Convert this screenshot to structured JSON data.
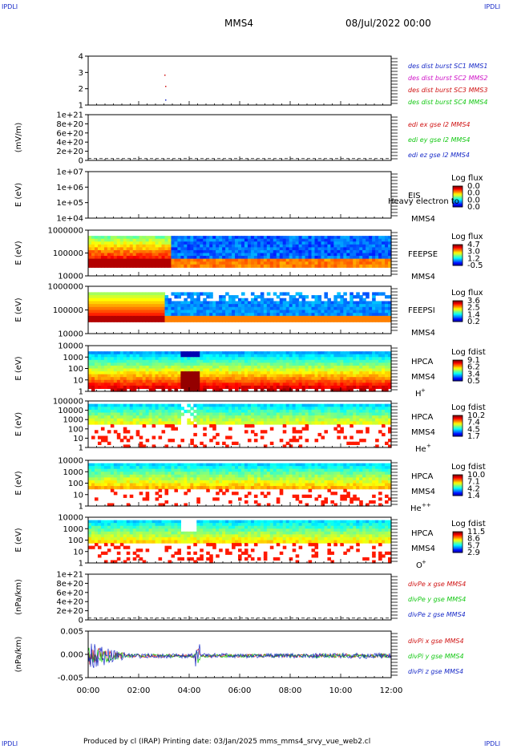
{
  "header": {
    "corner_left_top": "IPDLI",
    "corner_right_top": "IPDLI",
    "corner_left_bottom": "IPDLI",
    "corner_right_bottom": "IPDLI",
    "title": "MMS4",
    "date": "08/Jul/2022 00:00"
  },
  "footer": {
    "text": "Produced by cl (IRAP)   Printing date: 03/Jan/2025   mms_mms4_srvy_vue_web2.cl"
  },
  "colors": {
    "blue": "#1a2cc8",
    "magenta": "#d014c8",
    "red": "#d01414",
    "green": "#14c814"
  },
  "chart_data": [
    {
      "type": "line",
      "panel": "burst",
      "yticks": [
        "1",
        "2",
        "3",
        "4"
      ],
      "legend": [
        {
          "label": "des dist burst SC1 MMS1",
          "color": "#1a2cc8"
        },
        {
          "label": "des dist burst SC2 MMS2",
          "color": "#d014c8"
        },
        {
          "label": "des dist burst SC3 MMS3",
          "color": "#d01414"
        },
        {
          "label": "des dist burst SC4 MMS4",
          "color": "#14c814"
        }
      ]
    },
    {
      "type": "line",
      "panel": "edi",
      "ylabel": "(mV/m)",
      "yticks": [
        "0",
        "2e+20",
        "4e+20",
        "6e+20",
        "8e+20",
        "1e+21"
      ],
      "legend": [
        {
          "label": "edi ex gse l2 MMS4",
          "color": "#d01414"
        },
        {
          "label": "edi ey gse l2 MMS4",
          "color": "#14c814"
        },
        {
          "label": "edi ez gse l2 MMS4",
          "color": "#1a2cc8"
        }
      ]
    },
    {
      "type": "heatmap",
      "panel": "eis",
      "ylabel": "E (eV)",
      "yticks": [
        "1e+04",
        "1e+05",
        "1e+06",
        "1e+07"
      ],
      "inst": [
        "EIS",
        "MMS4"
      ],
      "overlap": "Heavy electron to",
      "cbar_title": "Log flux",
      "cbar_values": [
        "0.0",
        "0.0",
        "0.0",
        "0.0"
      ]
    },
    {
      "type": "heatmap",
      "panel": "feepse",
      "ylabel": "E (eV)",
      "yticks": [
        "10000",
        "100000",
        "1000000"
      ],
      "inst": [
        "FEEPSE",
        "MMS4"
      ],
      "cbar_title": "Log flux",
      "cbar_values": [
        "4.7",
        "3.0",
        "1.2",
        "-0.5"
      ]
    },
    {
      "type": "heatmap",
      "panel": "feepsi",
      "ylabel": "E (eV)",
      "yticks": [
        "10000",
        "100000",
        "1000000"
      ],
      "inst": [
        "FEEPSI",
        "MMS4"
      ],
      "cbar_title": "Log flux",
      "cbar_values": [
        "3.6",
        "2.5",
        "1.4",
        "0.2"
      ]
    },
    {
      "type": "heatmap",
      "panel": "hpca_h",
      "ylabel": "E (eV)",
      "yticks": [
        "1",
        "10",
        "100",
        "1000",
        "10000"
      ],
      "inst": [
        "HPCA",
        "MMS4"
      ],
      "species": "H",
      "sup": "+",
      "cbar_title": "Log fdist",
      "cbar_values": [
        "9.1",
        "6.2",
        "3.4",
        "0.5"
      ]
    },
    {
      "type": "heatmap",
      "panel": "hpca_he",
      "ylabel": "E (eV)",
      "yticks": [
        "1",
        "10",
        "100",
        "1000",
        "10000",
        "100000"
      ],
      "inst": [
        "HPCA",
        "MMS4"
      ],
      "species": "He",
      "sup": "+",
      "cbar_title": "Log fdist",
      "cbar_values": [
        "10.2",
        "7.4",
        "4.5",
        "1.7"
      ]
    },
    {
      "type": "heatmap",
      "panel": "hpca_hepp",
      "ylabel": "E (eV)",
      "yticks": [
        "1",
        "10",
        "100",
        "1000",
        "10000"
      ],
      "inst": [
        "HPCA",
        "MMS4"
      ],
      "species": "He",
      "sup": "++",
      "cbar_title": "Log fdist",
      "cbar_values": [
        "10.0",
        "7.1",
        "4.2",
        "1.4"
      ]
    },
    {
      "type": "heatmap",
      "panel": "hpca_o",
      "ylabel": "E (eV)",
      "yticks": [
        "1",
        "10",
        "100",
        "1000",
        "10000"
      ],
      "inst": [
        "HPCA",
        "MMS4"
      ],
      "species": "O",
      "sup": "+",
      "cbar_title": "Log fdist",
      "cbar_values": [
        "11.5",
        "8.6",
        "5.7",
        "2.9"
      ]
    },
    {
      "type": "line",
      "panel": "divpe",
      "ylabel": "(nPa/km)",
      "yticks": [
        "0",
        "2e+20",
        "4e+20",
        "6e+20",
        "8e+20",
        "1e+21"
      ],
      "legend": [
        {
          "label": "divPe x gse MMS4",
          "color": "#d01414"
        },
        {
          "label": "divPe y gse MMS4",
          "color": "#14c814"
        },
        {
          "label": "divPe z gse MMS4",
          "color": "#1a2cc8"
        }
      ]
    },
    {
      "type": "line",
      "panel": "divpi",
      "ylabel": "(nPa/km)",
      "yticks": [
        "-0.005",
        "0.000",
        "0.005"
      ],
      "legend": [
        {
          "label": "divPi x gse MMS4",
          "color": "#d01414"
        },
        {
          "label": "divPi y gse MMS4",
          "color": "#14c814"
        },
        {
          "label": "divPi z gse MMS4",
          "color": "#1a2cc8"
        }
      ]
    },
    {
      "type": "axis",
      "panel": "time",
      "xticks": [
        "00:00",
        "02:00",
        "04:00",
        "06:00",
        "08:00",
        "10:00",
        "12:00"
      ]
    }
  ]
}
